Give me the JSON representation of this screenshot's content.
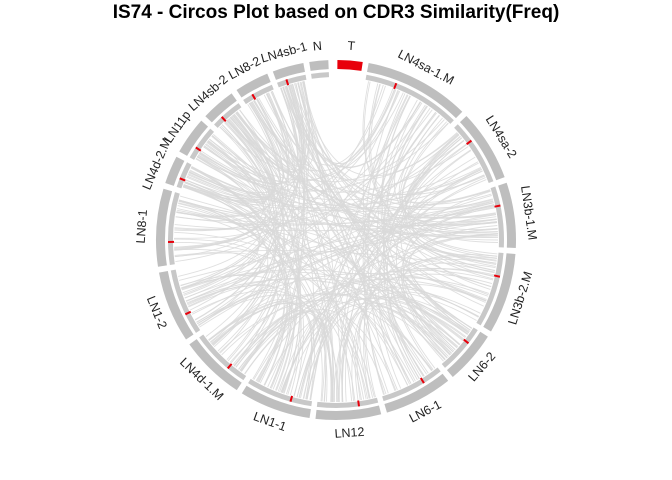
{
  "chart_data": {
    "type": "chord",
    "title": "IS74 - Circos Plot based on CDR3 Similarity(Freq)",
    "segments": [
      {
        "label": "T",
        "start": 0,
        "end": 9,
        "color": "#e8000b"
      },
      {
        "label": "LN4sa-1.M",
        "start": 10,
        "end": 45,
        "color": "#bebebe"
      },
      {
        "label": "LN4sa-2",
        "start": 46,
        "end": 70,
        "color": "#bebebe"
      },
      {
        "label": "LN3b-1.M",
        "start": 71,
        "end": 93,
        "color": "#bebebe"
      },
      {
        "label": "LN3b-2.M",
        "start": 94,
        "end": 121,
        "color": "#bebebe"
      },
      {
        "label": "LN6-2",
        "start": 122,
        "end": 140,
        "color": "#bebebe"
      },
      {
        "label": "LN6-1",
        "start": 141,
        "end": 164,
        "color": "#bebebe"
      },
      {
        "label": "LN12",
        "start": 165,
        "end": 187,
        "color": "#bebebe"
      },
      {
        "label": "LN1-1",
        "start": 188,
        "end": 212,
        "color": "#bebebe"
      },
      {
        "label": "LN4d-1.M",
        "start": 213,
        "end": 235,
        "color": "#bebebe"
      },
      {
        "label": "LN1-2",
        "start": 236,
        "end": 260,
        "color": "#bebebe"
      },
      {
        "label": "LN8-1",
        "start": 261,
        "end": 287,
        "color": "#bebebe"
      },
      {
        "label": "LN4d-2.M",
        "start": 288,
        "end": 298,
        "color": "#bebebe"
      },
      {
        "label": "LN11p",
        "start": 299,
        "end": 312,
        "color": "#bebebe"
      },
      {
        "label": "LN4sb-2",
        "start": 313,
        "end": 325,
        "color": "#bebebe"
      },
      {
        "label": "LN8-2",
        "start": 326,
        "end": 338,
        "color": "#bebebe"
      },
      {
        "label": "LN4sb-1",
        "start": 339,
        "end": 350,
        "color": "#bebebe"
      },
      {
        "label": "N",
        "start": 351,
        "end": 358,
        "color": "#bebebe"
      }
    ],
    "colors": {
      "link": "#d9d9d9",
      "outer_track": "#bebebe",
      "inner_track": "#c8c8c8",
      "marker": "#e8000b"
    }
  }
}
